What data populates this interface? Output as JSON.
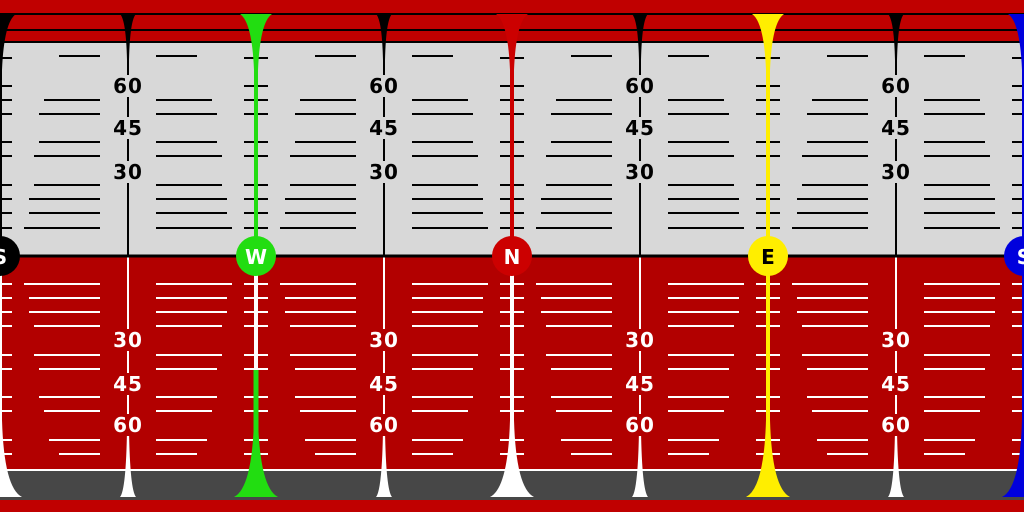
{
  "sky_color": "#d8d8d8",
  "ground_color": "#b20000",
  "band_color": "#c00000",
  "floor_color": "#474747",
  "pitch_labels_upper": [
    "60",
    "45",
    "30"
  ],
  "pitch_labels_lower": [
    "30",
    "45",
    "60"
  ],
  "cardinals": [
    {
      "label": "S",
      "color": "#000000",
      "text_color": "#ffffff"
    },
    {
      "label": "W",
      "color": "#22dd11",
      "text_color": "#ffffff"
    },
    {
      "label": "N",
      "color": "#cc0000",
      "text_color": "#ffffff"
    },
    {
      "label": "E",
      "color": "#ffee00",
      "text_color": "#000000"
    },
    {
      "label": "S",
      "color": "#0000dd",
      "text_color": "#ffffff"
    }
  ]
}
